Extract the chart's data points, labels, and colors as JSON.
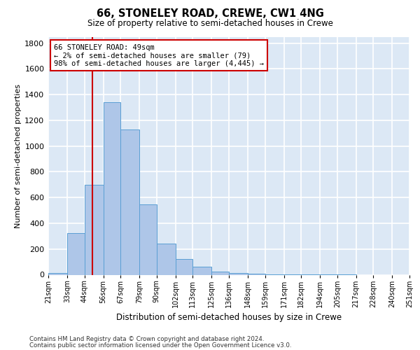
{
  "title": "66, STONELEY ROAD, CREWE, CW1 4NG",
  "subtitle": "Size of property relative to semi-detached houses in Crewe",
  "xlabel": "Distribution of semi-detached houses by size in Crewe",
  "ylabel": "Number of semi-detached properties",
  "annotation_title": "66 STONELEY ROAD: 49sqm",
  "annotation_line1": "← 2% of semi-detached houses are smaller (79)",
  "annotation_line2": "98% of semi-detached houses are larger (4,445) →",
  "property_size": 49,
  "bin_edges": [
    21,
    33,
    44,
    56,
    67,
    79,
    90,
    102,
    113,
    125,
    136,
    148,
    159,
    171,
    182,
    194,
    205,
    217,
    228,
    240,
    251
  ],
  "bar_heights": [
    15,
    325,
    700,
    1340,
    1130,
    545,
    240,
    120,
    60,
    25,
    15,
    8,
    5,
    3,
    2,
    1,
    1,
    0,
    0,
    0
  ],
  "bar_color": "#aec6e8",
  "bar_edge_color": "#5a9fd4",
  "vline_color": "#cc0000",
  "vline_x": 49,
  "annotation_box_color": "#cc0000",
  "background_color": "#dce8f5",
  "grid_color": "#ffffff",
  "ylim": [
    0,
    1850
  ],
  "yticks": [
    0,
    200,
    400,
    600,
    800,
    1000,
    1200,
    1400,
    1600,
    1800
  ],
  "footer_line1": "Contains HM Land Registry data © Crown copyright and database right 2024.",
  "footer_line2": "Contains public sector information licensed under the Open Government Licence v3.0."
}
